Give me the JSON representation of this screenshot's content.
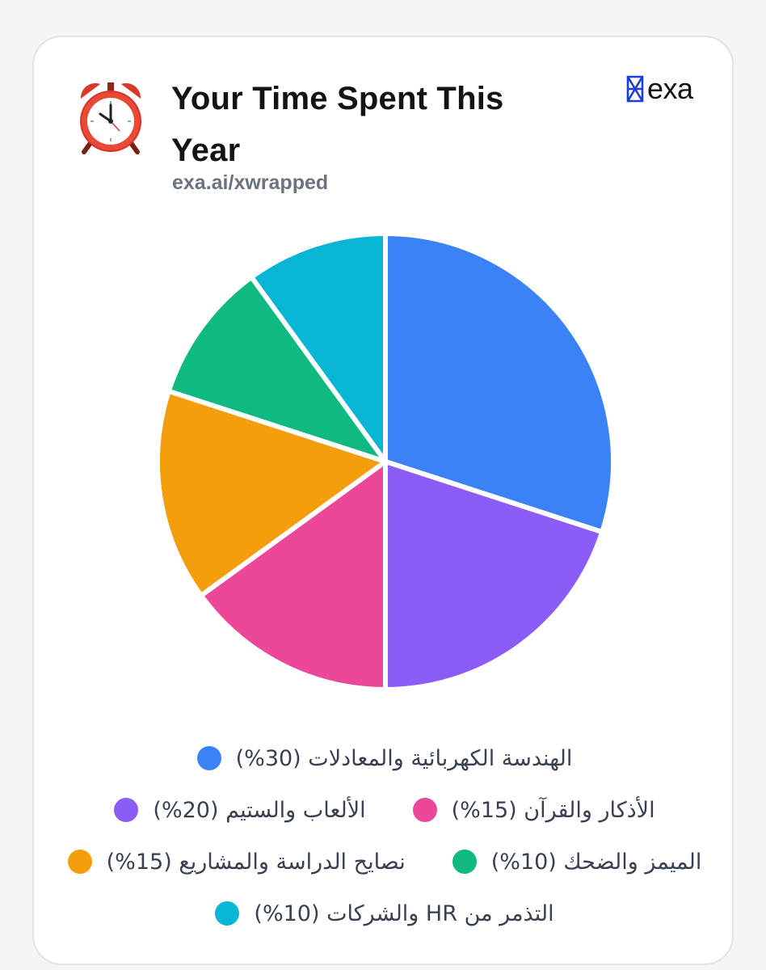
{
  "header": {
    "title": "Your Time Spent This Year",
    "subtitle": "exa.ai/xwrapped",
    "icon": "alarm-clock-icon",
    "logo_text": "exa"
  },
  "colors": {
    "blue": "#3B82F6",
    "purple": "#8B5CF6",
    "pink": "#EC4899",
    "orange": "#F59E0B",
    "green": "#10B981",
    "cyan": "#06B6D4"
  },
  "chart_data": {
    "type": "pie",
    "title": "Your Time Spent This Year",
    "slices": [
      {
        "label": "الهندسة الكهربائية والمعادلات",
        "value": 30,
        "color": "#3B82F6",
        "legend_text": "الهندسة الكهربائية والمعادلات (30%)"
      },
      {
        "label": "الألعاب والستيم",
        "value": 20,
        "color": "#8B5CF6",
        "legend_text": "الألعاب والستيم (20%)"
      },
      {
        "label": "الأذكار والقرآن",
        "value": 15,
        "color": "#EC4899",
        "legend_text": "الأذكار والقرآن (15%)"
      },
      {
        "label": "نصايح الدراسة والمشاريع",
        "value": 15,
        "color": "#F59E0B",
        "legend_text": "نصايح الدراسة والمشاريع (15%)"
      },
      {
        "label": "الميمز والضحك",
        "value": 10,
        "color": "#10B981",
        "legend_text": "الميمز والضحك (10%)"
      },
      {
        "label": "التذمر من HR والشركات",
        "value": 10,
        "color": "#06B6D4",
        "legend_text": "التذمر من HR والشركات (10%)"
      }
    ],
    "legend_rows": [
      [
        0
      ],
      [
        1,
        2
      ],
      [
        3,
        4
      ],
      [
        5
      ]
    ]
  }
}
